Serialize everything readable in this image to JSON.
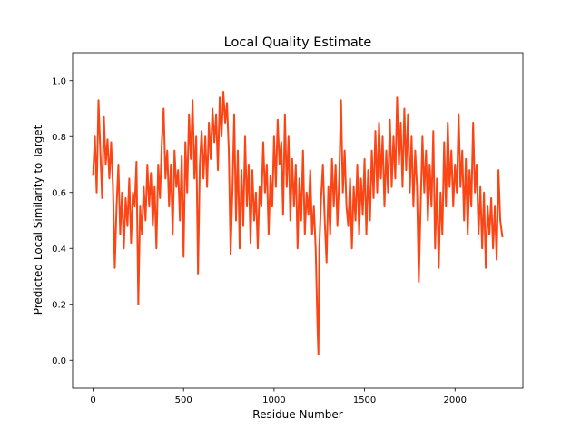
{
  "chart_data": {
    "type": "line",
    "title": "Local Quality Estimate",
    "x_label": "Residue Number",
    "y_label": "Predicted Local Similarity to Target",
    "xlim": [
      -113,
      2375
    ],
    "xticks": [
      0,
      500,
      1000,
      1500,
      2000
    ],
    "ylim": [
      -0.1,
      1.1
    ],
    "yticks": [
      0.0,
      0.2,
      0.4,
      0.6,
      0.8,
      1.0
    ],
    "yticks_labels": [
      "0.0",
      "0.2",
      "0.4",
      "0.6",
      "0.8",
      "1.0"
    ],
    "series": [
      {
        "color": "#fc4514",
        "x": [
          0,
          10,
          20,
          30,
          40,
          50,
          60,
          70,
          80,
          90,
          100,
          110,
          120,
          130,
          140,
          150,
          160,
          170,
          180,
          190,
          200,
          210,
          220,
          230,
          240,
          250,
          260,
          270,
          280,
          290,
          300,
          310,
          320,
          330,
          340,
          350,
          360,
          370,
          380,
          390,
          400,
          410,
          420,
          430,
          440,
          450,
          460,
          470,
          480,
          490,
          500,
          510,
          520,
          530,
          540,
          550,
          560,
          570,
          580,
          590,
          600,
          610,
          620,
          630,
          640,
          650,
          660,
          670,
          680,
          690,
          700,
          710,
          720,
          730,
          740,
          750,
          760,
          770,
          780,
          790,
          800,
          810,
          820,
          830,
          840,
          850,
          860,
          870,
          880,
          890,
          900,
          910,
          920,
          930,
          940,
          950,
          960,
          970,
          980,
          990,
          1000,
          1010,
          1020,
          1030,
          1040,
          1050,
          1060,
          1070,
          1080,
          1090,
          1100,
          1110,
          1120,
          1130,
          1140,
          1150,
          1160,
          1170,
          1180,
          1190,
          1200,
          1210,
          1220,
          1230,
          1240,
          1245,
          1250,
          1260,
          1270,
          1280,
          1290,
          1300,
          1310,
          1320,
          1330,
          1340,
          1350,
          1360,
          1370,
          1380,
          1390,
          1400,
          1410,
          1420,
          1430,
          1440,
          1450,
          1460,
          1470,
          1480,
          1490,
          1500,
          1510,
          1520,
          1530,
          1540,
          1550,
          1560,
          1570,
          1580,
          1590,
          1600,
          1610,
          1620,
          1630,
          1640,
          1650,
          1660,
          1670,
          1680,
          1690,
          1700,
          1710,
          1720,
          1730,
          1740,
          1750,
          1760,
          1770,
          1780,
          1790,
          1800,
          1810,
          1820,
          1830,
          1840,
          1850,
          1860,
          1870,
          1880,
          1890,
          1900,
          1910,
          1920,
          1930,
          1940,
          1950,
          1960,
          1970,
          1980,
          1990,
          2000,
          2010,
          2020,
          2030,
          2040,
          2050,
          2060,
          2070,
          2080,
          2090,
          2100,
          2110,
          2120,
          2130,
          2140,
          2150,
          2160,
          2170,
          2180,
          2190,
          2200,
          2210,
          2220,
          2230,
          2240,
          2250,
          2262
        ],
        "values": [
          0.66,
          0.8,
          0.6,
          0.93,
          0.75,
          0.58,
          0.87,
          0.7,
          0.79,
          0.65,
          0.78,
          0.62,
          0.33,
          0.55,
          0.7,
          0.45,
          0.6,
          0.4,
          0.58,
          0.48,
          0.65,
          0.42,
          0.6,
          0.55,
          0.71,
          0.2,
          0.55,
          0.45,
          0.62,
          0.5,
          0.7,
          0.55,
          0.67,
          0.48,
          0.62,
          0.4,
          0.7,
          0.58,
          0.78,
          0.9,
          0.65,
          0.75,
          0.55,
          0.7,
          0.45,
          0.75,
          0.62,
          0.68,
          0.5,
          0.73,
          0.37,
          0.78,
          0.6,
          0.88,
          0.72,
          0.93,
          0.65,
          0.8,
          0.31,
          0.7,
          0.82,
          0.65,
          0.8,
          0.62,
          0.85,
          0.72,
          0.9,
          0.78,
          0.88,
          0.68,
          0.94,
          0.8,
          0.96,
          0.85,
          0.92,
          0.75,
          0.38,
          0.6,
          0.88,
          0.5,
          0.75,
          0.4,
          0.68,
          0.48,
          0.8,
          0.55,
          0.7,
          0.42,
          0.68,
          0.5,
          0.6,
          0.4,
          0.62,
          0.55,
          0.78,
          0.6,
          0.7,
          0.45,
          0.66,
          0.55,
          0.8,
          0.62,
          0.86,
          0.7,
          0.78,
          0.52,
          0.88,
          0.62,
          0.8,
          0.5,
          0.72,
          0.55,
          0.7,
          0.4,
          0.65,
          0.5,
          0.75,
          0.45,
          0.6,
          0.52,
          0.68,
          0.45,
          0.55,
          0.4,
          0.12,
          0.02,
          0.4,
          0.58,
          0.7,
          0.5,
          0.35,
          0.62,
          0.45,
          0.72,
          0.55,
          0.7,
          0.48,
          0.65,
          0.93,
          0.6,
          0.75,
          0.55,
          0.48,
          0.65,
          0.4,
          0.62,
          0.5,
          0.7,
          0.45,
          0.65,
          0.52,
          0.72,
          0.45,
          0.68,
          0.5,
          0.75,
          0.58,
          0.82,
          0.6,
          0.85,
          0.65,
          0.8,
          0.55,
          0.75,
          0.6,
          0.86,
          0.62,
          0.8,
          0.65,
          0.94,
          0.7,
          0.85,
          0.62,
          0.9,
          0.68,
          0.88,
          0.6,
          0.8,
          0.55,
          0.75,
          0.62,
          0.28,
          0.55,
          0.8,
          0.6,
          0.75,
          0.5,
          0.7,
          0.55,
          0.82,
          0.4,
          0.65,
          0.33,
          0.6,
          0.45,
          0.78,
          0.55,
          0.85,
          0.62,
          0.75,
          0.55,
          0.7,
          0.6,
          0.88,
          0.62,
          0.75,
          0.5,
          0.72,
          0.45,
          0.68,
          0.55,
          0.85,
          0.6,
          0.7,
          0.45,
          0.62,
          0.4,
          0.6,
          0.33,
          0.55,
          0.45,
          0.58,
          0.4,
          0.55,
          0.36,
          0.68,
          0.5,
          0.44
        ]
      }
    ]
  }
}
